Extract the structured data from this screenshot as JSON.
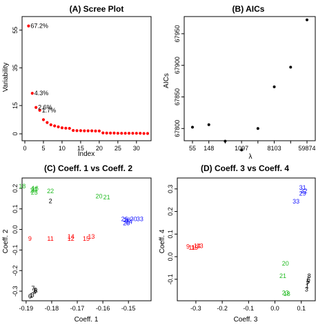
{
  "colors": {
    "scree_points": "#ff0000",
    "aic_points": "#000000",
    "group_red": "#ff0000",
    "group_green": "#22bb22",
    "group_blue": "#1515ff",
    "group_black": "#000000"
  },
  "chart_data": [
    {
      "type": "scatter",
      "title": "(A) Scree Plot",
      "xlabel": "Index",
      "ylabel": "Variability",
      "xlim": [
        0,
        33
      ],
      "ylim": [
        0,
        60
      ],
      "xticks": [
        0,
        5,
        10,
        15,
        20,
        25,
        30
      ],
      "yticks": [
        0,
        15,
        35,
        55
      ],
      "x": [
        1,
        2,
        3,
        4,
        5,
        6,
        7,
        8,
        9,
        10,
        11,
        12,
        13,
        14,
        15,
        16,
        17,
        18,
        19,
        20,
        21,
        22,
        23,
        24,
        25,
        26,
        27,
        28,
        29,
        30,
        31,
        32,
        33
      ],
      "y": [
        57.2,
        21.5,
        14.0,
        12.5,
        7.5,
        6.0,
        4.8,
        4.2,
        3.7,
        3.2,
        3.0,
        2.9,
        1.8,
        1.7,
        1.7,
        1.6,
        1.6,
        1.6,
        1.5,
        1.5,
        0.5,
        0.4,
        0.4,
        0.4,
        0.3,
        0.3,
        0.3,
        0.3,
        0.3,
        0.3,
        0.3,
        0.2,
        0.2
      ],
      "annotations": [
        {
          "index": 1,
          "text": "67.2%"
        },
        {
          "index": 2,
          "text": "4.3%"
        },
        {
          "index": 3,
          "text": "2.6%"
        },
        {
          "index": 4,
          "text": "1.7%"
        }
      ]
    },
    {
      "type": "scatter",
      "title": "(B) AICs",
      "xlabel": "λ",
      "ylabel": "AICs",
      "x_categories": [
        "55",
        "148",
        "",
        "1097",
        "",
        "8103",
        "",
        "59874"
      ],
      "ylim": [
        67785,
        67975
      ],
      "yticks": [
        67800,
        67850,
        67900,
        67950
      ],
      "y": [
        67802,
        67806,
        67780,
        67766,
        67800,
        67866,
        67897,
        67972
      ]
    },
    {
      "type": "scatter",
      "title": "(C) Coeff. 1 vs Coeff. 2",
      "xlabel": "Coeff. 1",
      "ylabel": "Coeff. 2",
      "xlim": [
        -0.1905,
        -0.1425
      ],
      "ylim": [
        -0.33,
        0.23
      ],
      "xticks": [
        -0.19,
        -0.18,
        -0.17,
        -0.16,
        -0.15
      ],
      "xtick_labels": [
        "-0.19",
        "-0.18",
        "-0.17",
        "-0.16",
        "-0.15"
      ],
      "yticks": [
        -0.3,
        -0.2,
        -0.1,
        0.0,
        0.1,
        0.2
      ],
      "ytick_labels": [
        "-0.3",
        "-0.2",
        "-0.1",
        "0.0",
        "0.1",
        "0.2"
      ],
      "points": [
        {
          "label": "1",
          "x": -0.188,
          "y": -0.322,
          "group": "black"
        },
        {
          "label": "3",
          "x": -0.1875,
          "y": -0.318,
          "group": "black"
        },
        {
          "label": "4",
          "x": -0.1868,
          "y": -0.305,
          "group": "black"
        },
        {
          "label": "5",
          "x": -0.1865,
          "y": -0.295,
          "group": "black"
        },
        {
          "label": "6",
          "x": -0.1885,
          "y": -0.325,
          "group": "black"
        },
        {
          "label": "7",
          "x": -0.1873,
          "y": -0.286,
          "group": "black"
        },
        {
          "label": "8",
          "x": -0.1862,
          "y": -0.298,
          "group": "black"
        },
        {
          "label": "2",
          "x": -0.1805,
          "y": 0.137,
          "group": "black"
        },
        {
          "label": "9",
          "x": -0.1885,
          "y": -0.045,
          "group": "red"
        },
        {
          "label": "11",
          "x": -0.1805,
          "y": -0.045,
          "group": "red"
        },
        {
          "label": "14",
          "x": -0.1725,
          "y": -0.035,
          "group": "red"
        },
        {
          "label": "12",
          "x": -0.1725,
          "y": -0.045,
          "group": "red"
        },
        {
          "label": "15",
          "x": -0.1665,
          "y": -0.045,
          "group": "red"
        },
        {
          "label": "13",
          "x": -0.1645,
          "y": -0.035,
          "group": "red"
        },
        {
          "label": "18",
          "x": -0.1915,
          "y": 0.21,
          "group": "green"
        },
        {
          "label": "16",
          "x": -0.1865,
          "y": 0.2,
          "group": "green"
        },
        {
          "label": "17",
          "x": -0.1868,
          "y": 0.195,
          "group": "green"
        },
        {
          "label": "19",
          "x": -0.1872,
          "y": 0.19,
          "group": "green"
        },
        {
          "label": "22",
          "x": -0.1805,
          "y": 0.187,
          "group": "green"
        },
        {
          "label": "23",
          "x": -0.1868,
          "y": 0.18,
          "group": "green"
        },
        {
          "label": "20",
          "x": -0.1615,
          "y": 0.162,
          "group": "green"
        },
        {
          "label": "21",
          "x": -0.1585,
          "y": 0.157,
          "group": "green"
        },
        {
          "label": "26",
          "x": -0.1515,
          "y": 0.05,
          "group": "blue"
        },
        {
          "label": "28",
          "x": -0.1505,
          "y": 0.045,
          "group": "blue"
        },
        {
          "label": "30",
          "x": -0.148,
          "y": 0.05,
          "group": "blue"
        },
        {
          "label": "33",
          "x": -0.1455,
          "y": 0.05,
          "group": "blue"
        },
        {
          "label": "24",
          "x": -0.1498,
          "y": 0.038,
          "group": "blue"
        },
        {
          "label": "25",
          "x": -0.1508,
          "y": 0.03,
          "group": "blue"
        }
      ]
    },
    {
      "type": "scatter",
      "title": "(D) Coeff. 3 vs Coeff. 4",
      "xlabel": "Coeff. 3",
      "ylabel": "Coeff. 4",
      "xlim": [
        -0.36,
        0.14
      ],
      "ylim": [
        -0.18,
        0.33
      ],
      "xticks": [
        -0.3,
        -0.2,
        -0.1,
        0.0,
        0.1
      ],
      "xtick_labels": [
        "-0.3",
        "-0.2",
        "-0.1",
        "0.0",
        "0.1"
      ],
      "yticks": [
        -0.1,
        0.0,
        0.1,
        0.2,
        0.3
      ],
      "ytick_labels": [
        "-0.1",
        "0.0",
        "0.1",
        "0.2",
        "0.3"
      ],
      "points": [
        {
          "label": "31",
          "x": 0.105,
          "y": 0.305,
          "group": "blue"
        },
        {
          "label": "32",
          "x": 0.11,
          "y": 0.29,
          "group": "blue"
        },
        {
          "label": "29",
          "x": 0.105,
          "y": 0.28,
          "group": "blue"
        },
        {
          "label": "33",
          "x": 0.08,
          "y": 0.245,
          "group": "blue"
        },
        {
          "label": "9",
          "x": -0.33,
          "y": 0.045,
          "group": "red"
        },
        {
          "label": "11",
          "x": -0.315,
          "y": 0.04,
          "group": "red"
        },
        {
          "label": "15",
          "x": -0.305,
          "y": 0.04,
          "group": "red"
        },
        {
          "label": "14",
          "x": -0.295,
          "y": 0.048,
          "group": "red"
        },
        {
          "label": "13",
          "x": -0.285,
          "y": 0.048,
          "group": "red"
        },
        {
          "label": "20",
          "x": 0.04,
          "y": -0.03,
          "group": "green"
        },
        {
          "label": "21",
          "x": 0.03,
          "y": -0.085,
          "group": "green"
        },
        {
          "label": "23",
          "x": 0.04,
          "y": -0.16,
          "group": "green"
        },
        {
          "label": "18",
          "x": 0.045,
          "y": -0.165,
          "group": "green"
        },
        {
          "label": "8",
          "x": 0.13,
          "y": -0.085,
          "group": "black"
        },
        {
          "label": "6",
          "x": 0.128,
          "y": -0.1,
          "group": "black"
        },
        {
          "label": "5",
          "x": 0.126,
          "y": -0.11,
          "group": "black"
        },
        {
          "label": "7",
          "x": 0.124,
          "y": -0.12,
          "group": "black"
        },
        {
          "label": "1",
          "x": 0.122,
          "y": -0.13,
          "group": "black"
        },
        {
          "label": "3",
          "x": 0.12,
          "y": -0.145,
          "group": "black"
        }
      ]
    }
  ]
}
